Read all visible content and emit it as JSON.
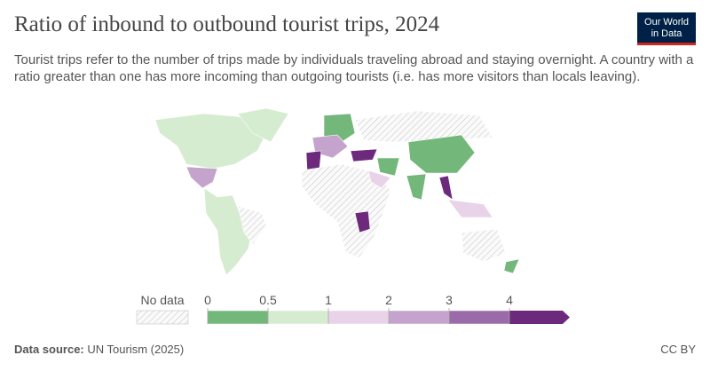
{
  "header": {
    "title": "Ratio of inbound to outbound tourist trips, 2024",
    "subtitle": "Tourist trips refer to the number of trips made by individuals traveling abroad and staying overnight. A country with a ratio greater than one has more incoming than outgoing tourists (i.e. has more visitors than locals leaving).",
    "logo": [
      "Our World",
      "in Data"
    ]
  },
  "legend": {
    "no_data_label": "No data",
    "bins": [
      0,
      0.5,
      1,
      2,
      3,
      4
    ],
    "colors": [
      "#74b77a",
      "#d5ecd0",
      "#e8d3e8",
      "#c4a3cc",
      "#9b6aa9",
      "#6d2a7d"
    ]
  },
  "footer": {
    "source_label": "Data source:",
    "source": "UN Tourism (2025)",
    "license": "CC BY"
  }
}
